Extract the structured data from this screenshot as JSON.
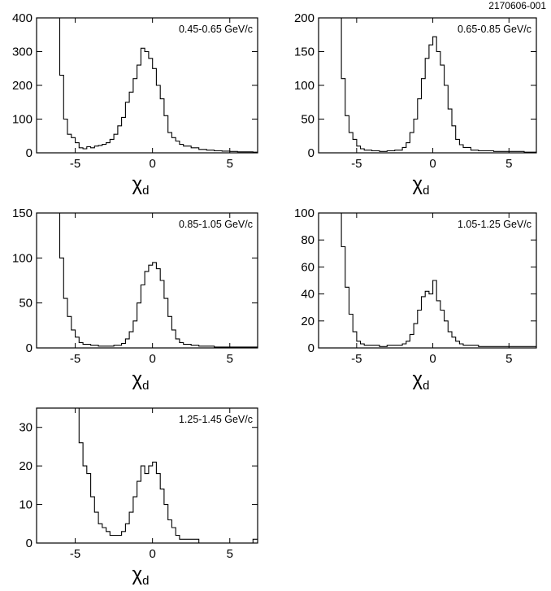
{
  "figure": {
    "id_label": "2170606-001"
  },
  "chart_data": [
    {
      "type": "step-histogram",
      "panel_label": "0.45-0.65 GeV/c",
      "xlabel": "χ",
      "xlabel_sub": "d",
      "xlim": [
        -7.5,
        6.8
      ],
      "ylim": [
        0,
        400
      ],
      "x_ticks": [
        -5,
        0,
        5
      ],
      "y_ticks": [
        0,
        100,
        200,
        300,
        400
      ],
      "grid": false,
      "x": [
        -6.25,
        -6.0,
        -5.75,
        -5.5,
        -5.25,
        -5.0,
        -4.75,
        -4.5,
        -4.25,
        -4.0,
        -3.75,
        -3.5,
        -3.25,
        -3.0,
        -2.75,
        -2.5,
        -2.25,
        -2.0,
        -1.75,
        -1.5,
        -1.25,
        -1.0,
        -0.75,
        -0.5,
        -0.25,
        0.0,
        0.25,
        0.5,
        0.75,
        1.0,
        1.25,
        1.5,
        1.75,
        2.0,
        2.5,
        3.0,
        3.5,
        4.0,
        4.5,
        5.0,
        5.5,
        6.0,
        6.5
      ],
      "values": [
        400,
        230,
        100,
        55,
        45,
        30,
        15,
        12,
        18,
        15,
        20,
        22,
        25,
        30,
        40,
        55,
        80,
        105,
        150,
        180,
        220,
        260,
        310,
        300,
        280,
        250,
        200,
        160,
        110,
        60,
        45,
        35,
        25,
        20,
        15,
        10,
        8,
        6,
        5,
        4,
        3,
        3,
        2
      ]
    },
    {
      "type": "step-histogram",
      "panel_label": "0.65-0.85 GeV/c",
      "xlabel": "χ",
      "xlabel_sub": "d",
      "xlim": [
        -7.5,
        6.8
      ],
      "ylim": [
        0,
        200
      ],
      "x_ticks": [
        -5,
        0,
        5
      ],
      "y_ticks": [
        0,
        50,
        100,
        150,
        200
      ],
      "grid": false,
      "x": [
        -6.25,
        -6.0,
        -5.75,
        -5.5,
        -5.25,
        -5.0,
        -4.75,
        -4.5,
        -4.0,
        -3.5,
        -3.0,
        -2.5,
        -2.0,
        -1.75,
        -1.5,
        -1.25,
        -1.0,
        -0.75,
        -0.5,
        -0.25,
        0.0,
        0.25,
        0.5,
        0.75,
        1.0,
        1.25,
        1.5,
        1.75,
        2.0,
        2.5,
        3.0,
        4.0,
        5.0,
        6.0
      ],
      "values": [
        200,
        110,
        55,
        30,
        20,
        10,
        6,
        4,
        3,
        2,
        3,
        4,
        8,
        15,
        30,
        50,
        80,
        110,
        140,
        160,
        172,
        150,
        130,
        100,
        65,
        40,
        20,
        12,
        8,
        4,
        3,
        2,
        2,
        1
      ]
    },
    {
      "type": "step-histogram",
      "panel_label": "0.85-1.05 GeV/c",
      "xlabel": "χ",
      "xlabel_sub": "d",
      "xlim": [
        -7.5,
        6.8
      ],
      "ylim": [
        0,
        150
      ],
      "x_ticks": [
        -5,
        0,
        5
      ],
      "y_ticks": [
        0,
        50,
        100,
        150
      ],
      "grid": false,
      "x": [
        -6.25,
        -6.0,
        -5.75,
        -5.5,
        -5.25,
        -5.0,
        -4.75,
        -4.5,
        -4.0,
        -3.5,
        -3.0,
        -2.5,
        -2.0,
        -1.75,
        -1.5,
        -1.25,
        -1.0,
        -0.75,
        -0.5,
        -0.25,
        0.0,
        0.25,
        0.5,
        0.75,
        1.0,
        1.25,
        1.5,
        1.75,
        2.0,
        2.5,
        3.0,
        4.0,
        5.0,
        6.0
      ],
      "values": [
        150,
        100,
        55,
        35,
        20,
        12,
        6,
        4,
        3,
        2,
        2,
        3,
        5,
        10,
        18,
        30,
        50,
        70,
        85,
        92,
        95,
        88,
        75,
        55,
        35,
        20,
        10,
        6,
        4,
        3,
        2,
        1,
        1,
        1
      ]
    },
    {
      "type": "step-histogram",
      "panel_label": "1.05-1.25 GeV/c",
      "xlabel": "χ",
      "xlabel_sub": "d",
      "xlim": [
        -7.5,
        6.8
      ],
      "ylim": [
        0,
        100
      ],
      "x_ticks": [
        -5,
        0,
        5
      ],
      "y_ticks": [
        0,
        20,
        40,
        60,
        80,
        100
      ],
      "grid": false,
      "x": [
        -6.25,
        -6.0,
        -5.75,
        -5.5,
        -5.25,
        -5.0,
        -4.75,
        -4.5,
        -4.0,
        -3.5,
        -3.0,
        -2.5,
        -2.0,
        -1.75,
        -1.5,
        -1.25,
        -1.0,
        -0.75,
        -0.5,
        -0.25,
        0.0,
        0.25,
        0.5,
        0.75,
        1.0,
        1.25,
        1.5,
        1.75,
        2.0,
        2.5,
        3.0,
        4.0,
        5.0,
        6.0
      ],
      "values": [
        100,
        75,
        45,
        25,
        12,
        5,
        3,
        2,
        2,
        1,
        2,
        2,
        3,
        5,
        10,
        18,
        28,
        38,
        42,
        40,
        50,
        35,
        28,
        20,
        12,
        8,
        5,
        3,
        2,
        2,
        1,
        1,
        1,
        1
      ]
    },
    {
      "type": "step-histogram",
      "panel_label": "1.25-1.45 GeV/c",
      "xlabel": "χ",
      "xlabel_sub": "d",
      "xlim": [
        -7.5,
        6.8
      ],
      "ylim": [
        0,
        35
      ],
      "x_ticks": [
        -5,
        0,
        5
      ],
      "y_ticks": [
        0,
        10,
        20,
        30
      ],
      "grid": false,
      "x": [
        -5.0,
        -4.75,
        -4.5,
        -4.25,
        -4.0,
        -3.75,
        -3.5,
        -3.25,
        -3.0,
        -2.75,
        -2.5,
        -2.25,
        -2.0,
        -1.75,
        -1.5,
        -1.25,
        -1.0,
        -0.75,
        -0.5,
        -0.25,
        0.0,
        0.25,
        0.5,
        0.75,
        1.0,
        1.25,
        1.5,
        1.75,
        2.0,
        2.5,
        3.0,
        4.0,
        5.0,
        6.5
      ],
      "values": [
        35,
        26,
        20,
        18,
        12,
        8,
        5,
        4,
        3,
        2,
        2,
        2,
        3,
        5,
        8,
        12,
        16,
        20,
        18,
        20,
        21,
        18,
        14,
        10,
        6,
        4,
        2,
        1,
        1,
        1,
        0,
        0,
        0,
        1
      ]
    }
  ]
}
